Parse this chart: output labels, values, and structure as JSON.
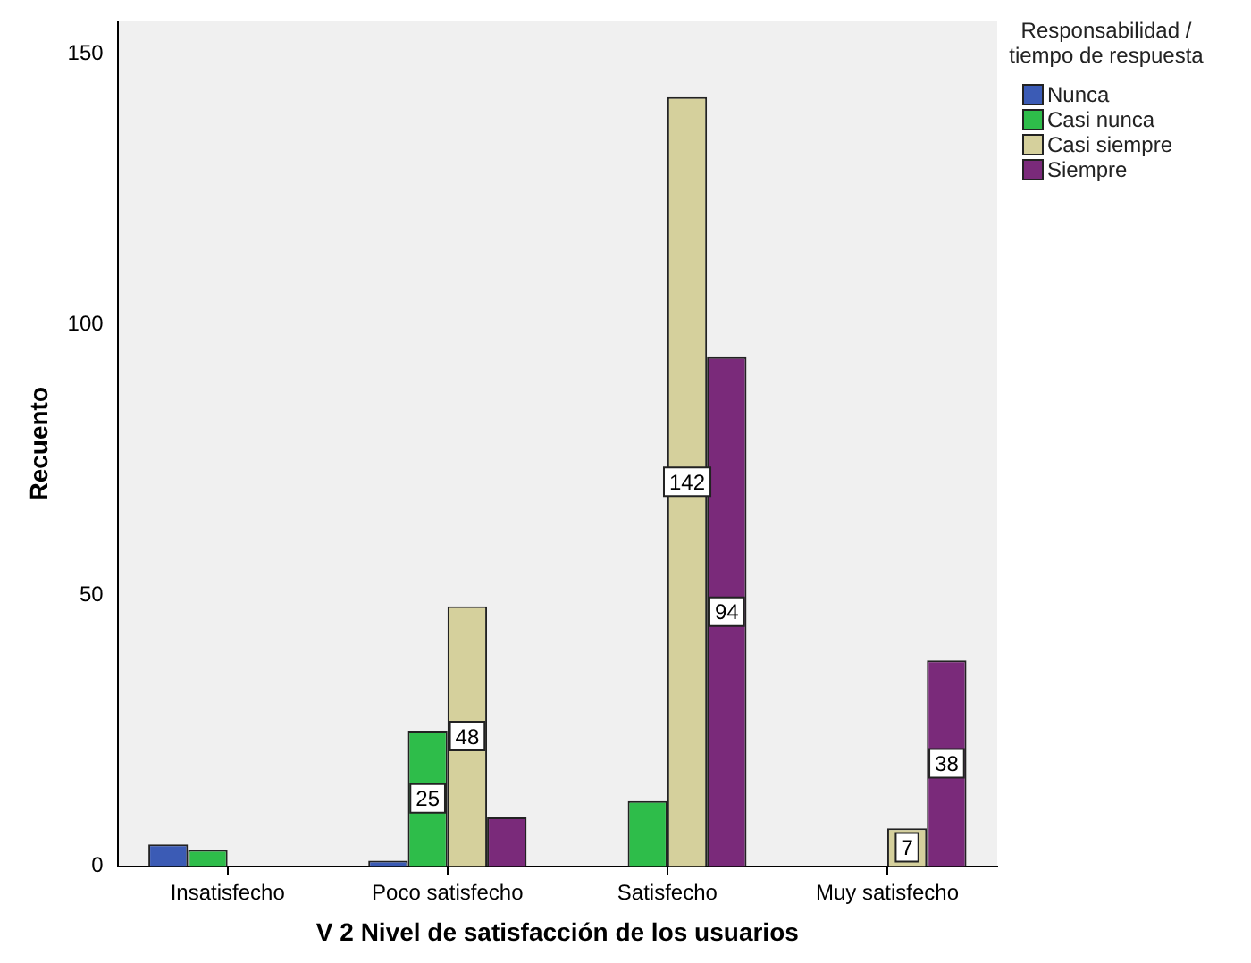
{
  "chart_data": {
    "type": "bar",
    "xlabel": "V 2 Nivel de satisfacción de los usuarios",
    "ylabel": "Recuento",
    "legend_title": "Responsabilidad / tiempo de respuesta",
    "legend": "right",
    "grid": false,
    "categories": [
      "Insatisfecho",
      "Poco satisfecho",
      "Satisfecho",
      "Muy satisfecho"
    ],
    "ylim": [
      0,
      156
    ],
    "yticks": [
      0,
      50,
      100,
      150
    ],
    "series": [
      {
        "name": "Nunca",
        "color": "#3b5bb5",
        "values": [
          4,
          1,
          null,
          null
        ]
      },
      {
        "name": "Casi nunca",
        "color": "#2ebd4a",
        "values": [
          3,
          25,
          12,
          null
        ],
        "value_labels": [
          null,
          "25",
          null,
          null
        ]
      },
      {
        "name": "Casi siempre",
        "color": "#d5d09c",
        "values": [
          null,
          48,
          142,
          7
        ],
        "value_labels": [
          null,
          "48",
          "142",
          "7"
        ]
      },
      {
        "name": "Siempre",
        "color": "#7a2a7a",
        "values": [
          null,
          9,
          94,
          38
        ],
        "value_labels": [
          null,
          null,
          "94",
          "38"
        ]
      }
    ]
  }
}
